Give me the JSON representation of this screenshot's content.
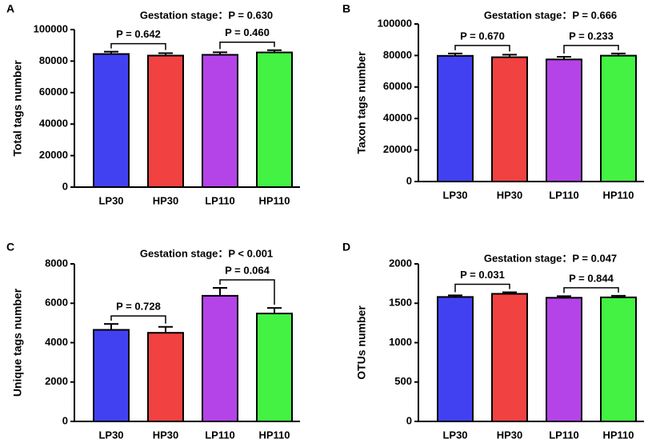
{
  "chart_data": [
    {
      "type": "bar",
      "panel": "A",
      "title": "Gestation stage：P = 0.630",
      "ylabel": "Total tags number",
      "categories": [
        "LP30",
        "HP30",
        "LP110",
        "HP110"
      ],
      "values": [
        84500,
        83500,
        84000,
        85500
      ],
      "errors": [
        1500,
        1500,
        1600,
        1400
      ],
      "colors": [
        "#4141f2",
        "#f24141",
        "#b443e8",
        "#43f243"
      ],
      "ylim": [
        0,
        100000
      ],
      "yticks": [
        0,
        20000,
        40000,
        60000,
        80000,
        100000
      ],
      "comparisons": [
        "P = 0.642",
        "P = 0.460"
      ]
    },
    {
      "type": "bar",
      "panel": "B",
      "title": "Gestation stage：P = 0.666",
      "ylabel": "Taxon tags number",
      "categories": [
        "LP30",
        "HP30",
        "LP110",
        "HP110"
      ],
      "values": [
        79800,
        78900,
        77500,
        79900
      ],
      "errors": [
        1500,
        1600,
        1700,
        1400
      ],
      "colors": [
        "#4141f2",
        "#f24141",
        "#b443e8",
        "#43f243"
      ],
      "ylim": [
        0,
        100000
      ],
      "yticks": [
        0,
        20000,
        40000,
        60000,
        80000,
        100000
      ],
      "comparisons": [
        "P = 0.670",
        "P = 0.233"
      ]
    },
    {
      "type": "bar",
      "panel": "C",
      "title": "Gestation stage：P < 0.001",
      "ylabel": "Unique tags number",
      "categories": [
        "LP30",
        "HP30",
        "LP110",
        "HP110"
      ],
      "values": [
        4650,
        4500,
        6380,
        5480
      ],
      "errors": [
        300,
        300,
        400,
        280
      ],
      "colors": [
        "#4141f2",
        "#f24141",
        "#b443e8",
        "#43f243"
      ],
      "ylim": [
        0,
        8000
      ],
      "yticks": [
        0,
        2000,
        4000,
        6000,
        8000
      ],
      "comparisons": [
        "P = 0.728",
        "P = 0.064"
      ]
    },
    {
      "type": "bar",
      "panel": "D",
      "title": "Gestation stage：P = 0.047",
      "ylabel": "OTUs number",
      "categories": [
        "LP30",
        "HP30",
        "LP110",
        "HP110"
      ],
      "values": [
        1580,
        1620,
        1570,
        1575
      ],
      "errors": [
        20,
        20,
        20,
        20
      ],
      "colors": [
        "#4141f2",
        "#f24141",
        "#b443e8",
        "#43f243"
      ],
      "ylim": [
        0,
        2000
      ],
      "yticks": [
        0,
        500,
        1000,
        1500,
        2000
      ],
      "comparisons": [
        "P = 0.031",
        "P = 0.844"
      ]
    }
  ]
}
